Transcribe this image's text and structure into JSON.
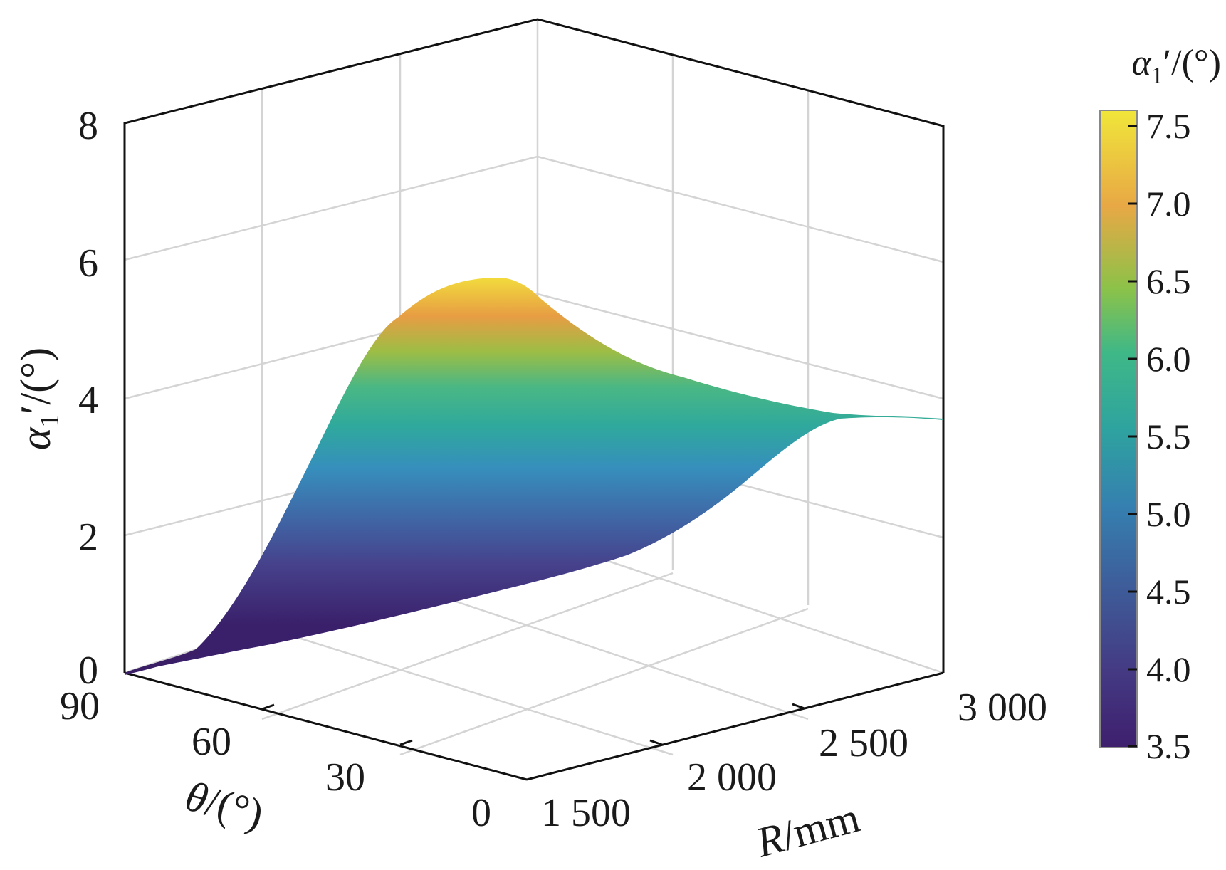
{
  "chart_data": {
    "type": "surface3d",
    "title": "",
    "z_axis": {
      "label_symbol": "α",
      "label_subscript": "1",
      "label_suffix": "′/(°)",
      "ticks": [
        "0",
        "2",
        "4",
        "6",
        "8"
      ],
      "range": [
        0,
        8
      ]
    },
    "theta_axis": {
      "label_symbol": "θ",
      "label_suffix": "/(°)",
      "ticks": [
        "90",
        "60",
        "30",
        "0"
      ],
      "range": [
        90,
        0
      ]
    },
    "r_axis": {
      "label_symbol": "R",
      "label_suffix": "/mm",
      "ticks": [
        "1 500",
        "2 000",
        "2 500",
        "3 000"
      ],
      "range": [
        1500,
        3000
      ]
    },
    "colorbar": {
      "title_symbol": "α",
      "title_subscript": "1",
      "title_suffix": "′/(°)",
      "ticks": [
        "3.5",
        "4.0",
        "4.5",
        "5.0",
        "5.5",
        "6.0",
        "6.5",
        "7.0",
        "7.5"
      ],
      "range": [
        3.5,
        7.6
      ],
      "colormap": [
        "#440154",
        "#3b528b",
        "#21918c",
        "#5ec962",
        "#fde725"
      ]
    },
    "surface_profile": {
      "description_axis": "alpha at theta=0 edge vs R (upper silhouette), alpha at theta=90 edge vs R (lower silhouette)",
      "R": [
        1500,
        1650,
        1800,
        1950,
        2100,
        2250,
        2400,
        2550,
        2700,
        2850,
        3000
      ],
      "alpha_theta_max_angle_edge": [
        0.0,
        0.3,
        0.6,
        0.9,
        1.2,
        1.5,
        1.8,
        2.3,
        3.0,
        3.6,
        3.7
      ],
      "alpha_peak_ridge": [
        0.1,
        0.5,
        2.0,
        3.9,
        5.3,
        5.6,
        5.0,
        4.4,
        4.0,
        3.8,
        3.7
      ]
    }
  }
}
